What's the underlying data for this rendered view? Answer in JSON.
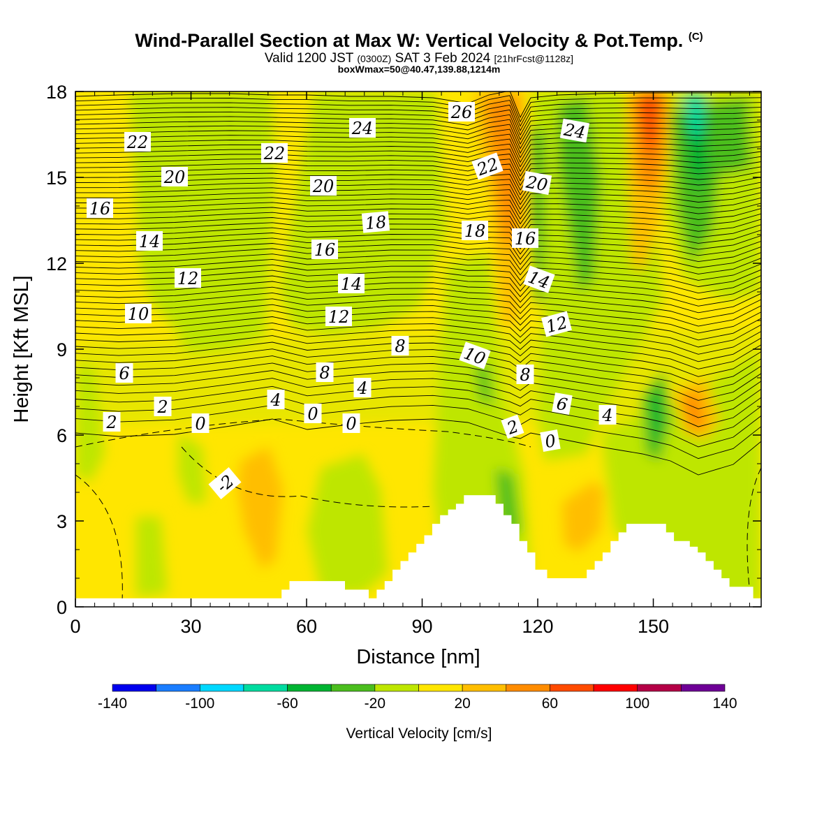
{
  "title": {
    "main": "Wind-Parallel Section at Max W: Vertical Velocity & Pot.Temp.",
    "copyright": "(C)",
    "valid_prefix": "Valid 1200 JST",
    "valid_utc": "(0300Z)",
    "valid_date": "SAT 3 Feb 2024",
    "forecast": "[21hrFcst@1128z]",
    "boxwmax": "boxWmax=50@40.47,139.88,1214m"
  },
  "chart_data": {
    "type": "heatmap",
    "xlabel": "Distance [nm]",
    "ylabel": "Height [Kft MSL]",
    "xlim": [
      0,
      178
    ],
    "ylim": [
      0,
      18
    ],
    "x_ticks": [
      0,
      30,
      60,
      90,
      120,
      150
    ],
    "y_ticks": [
      0,
      3,
      6,
      9,
      12,
      15,
      18
    ],
    "colorbar": {
      "label": "Vertical Velocity [cm/s]",
      "tick_labels": [
        "-140",
        "-100",
        "-60",
        "-20",
        "20",
        "60",
        "100",
        "140"
      ],
      "colors": [
        "#0000ee",
        "#1a7dff",
        "#00d8ff",
        "#00dca0",
        "#00b432",
        "#4bbe1e",
        "#bee600",
        "#ffe600",
        "#ffbe00",
        "#ff8c00",
        "#ff4b00",
        "#ff0000",
        "#b40046",
        "#6e0096"
      ]
    },
    "terrain_heights_kft": [
      0.3,
      0.3,
      0.3,
      0.3,
      0.3,
      0.3,
      0.3,
      0.3,
      0.3,
      0.3,
      0.3,
      0.3,
      0.3,
      0.3,
      0.3,
      0.3,
      0.3,
      0.3,
      0.3,
      0.3,
      0.3,
      0.3,
      0.3,
      0.3,
      0.3,
      0.3,
      0.3,
      0.3,
      0.3,
      0.3,
      0.3,
      0.3,
      0.3,
      0.3,
      0.3,
      0.3,
      0.3,
      0.3,
      0.3,
      0.3,
      0.3,
      0.3,
      0.3,
      0.3,
      0.3,
      0.3,
      0.3,
      0.3,
      0.3,
      0.3,
      0.3,
      0.3,
      0.6,
      0.6,
      0.9,
      0.9,
      0.9,
      0.9,
      0.9,
      0.9,
      0.9,
      0.9,
      0.9,
      0.9,
      0.9,
      0.9,
      0.9,
      0.9,
      0.6,
      0.6,
      0.6,
      0.6,
      0.6,
      0.6,
      0.3,
      0.3,
      0.6,
      0.6,
      0.9,
      0.9,
      1.3,
      1.3,
      1.6,
      1.6,
      1.9,
      1.9,
      2.2,
      2.2,
      2.5,
      2.5,
      2.9,
      2.9,
      3.2,
      3.2,
      3.4,
      3.4,
      3.6,
      3.6,
      3.9,
      3.9,
      3.9,
      3.9,
      3.9,
      3.9,
      3.9,
      3.9,
      3.6,
      3.6,
      3.2,
      3.2,
      2.9,
      2.9,
      2.3,
      2.3,
      1.9,
      1.9,
      1.3,
      1.3,
      1.3,
      1.0,
      1.0,
      1.0,
      1.0,
      1.0,
      1.0,
      1.0,
      1.0,
      1.0,
      1.0,
      1.3,
      1.3,
      1.6,
      1.6,
      1.9,
      1.9,
      2.3,
      2.3,
      2.6,
      2.6,
      2.9,
      2.9,
      2.9,
      2.9,
      2.9,
      2.9,
      2.9,
      2.9,
      2.9,
      2.9,
      2.6,
      2.6,
      2.3,
      2.3,
      2.3,
      2.3,
      2.1,
      2.1,
      1.9,
      1.9,
      1.6,
      1.6,
      1.3,
      1.3,
      1.0,
      1.0,
      0.7,
      0.7,
      0.7,
      0.7,
      0.7,
      0.7,
      0.3,
      0.3,
      0.3
    ],
    "theta_contour_labels": [
      "-2",
      "0",
      "0",
      "0",
      "0",
      "2",
      "2",
      "2",
      "4",
      "4",
      "4",
      "6",
      "6",
      "8",
      "8",
      "8",
      "10",
      "10",
      "12",
      "12",
      "12",
      "14",
      "14",
      "14",
      "16",
      "16",
      "16",
      "18",
      "18",
      "20",
      "20",
      "20",
      "22",
      "22",
      "22",
      "24",
      "24",
      "26"
    ]
  }
}
